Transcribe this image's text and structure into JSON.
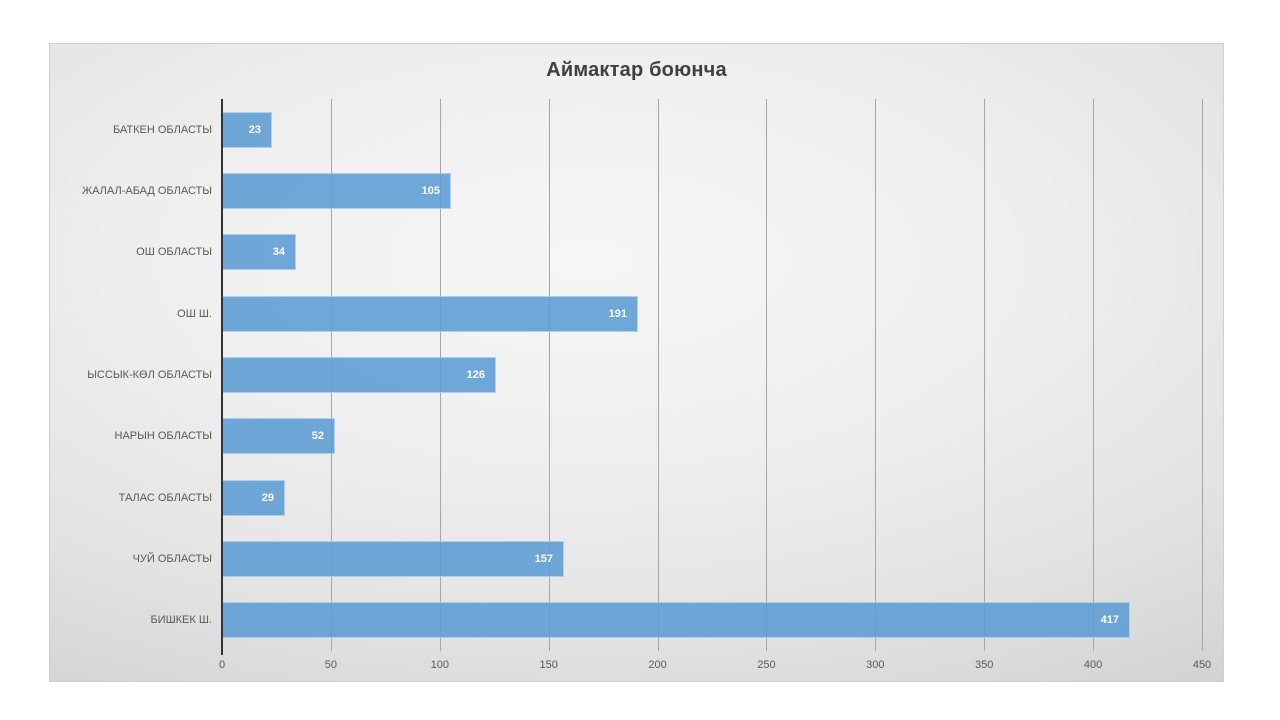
{
  "page": {
    "background": "#ffffff"
  },
  "chart": {
    "title": "Аймактар боюнча",
    "colors": {
      "bar": "rgba(91,155,213,0.87)",
      "bar_solid_hex": "#6CA0D6",
      "bar_label": "#ffffff",
      "title_text": "#3f3f3f",
      "axis_text": "#595959",
      "gridline": "#a6a6a6",
      "axis_line": "#333333",
      "frame_border": "#cfcfcf"
    }
  },
  "chart_data": {
    "type": "bar",
    "orientation": "horizontal",
    "title": "Аймактар боюнча",
    "categories": [
      "БАТКЕН ОБЛАСТЫ",
      "ЖАЛАЛ-АБАД ОБЛАСТЫ",
      "ОШ ОБЛАСТЫ",
      "ОШ Ш.",
      "ЫССЫК-КӨЛ ОБЛАСТЫ",
      "НАРЫН ОБЛАСТЫ",
      "ТАЛАС ОБЛАСТЫ",
      "ЧУЙ ОБЛАСТЫ",
      "БИШКЕК Ш."
    ],
    "values": [
      23,
      105,
      34,
      191,
      126,
      52,
      29,
      157,
      417
    ],
    "data_label_values": [
      "23",
      "105",
      "34",
      "191",
      "126",
      "52",
      "29",
      "157",
      "417"
    ],
    "xlabel": "",
    "ylabel": "",
    "xlim": [
      0,
      450
    ],
    "xticks": [
      0,
      50,
      100,
      150,
      200,
      250,
      300,
      350,
      400,
      450
    ],
    "grid": true,
    "gridlines": "vertical",
    "data_labels": "inside-end",
    "legend": "none"
  }
}
